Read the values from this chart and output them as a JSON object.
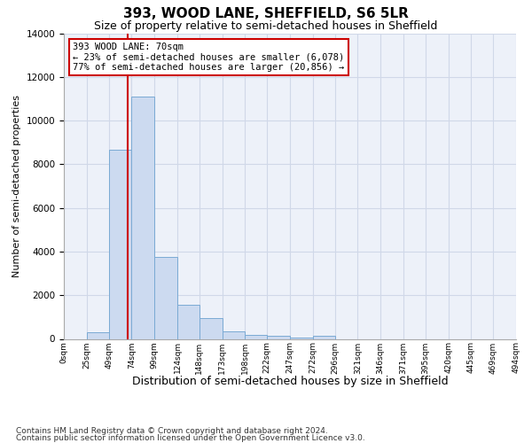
{
  "title": "393, WOOD LANE, SHEFFIELD, S6 5LR",
  "subtitle": "Size of property relative to semi-detached houses in Sheffield",
  "xlabel": "Distribution of semi-detached houses by size in Sheffield",
  "ylabel": "Number of semi-detached properties",
  "footnote1": "Contains HM Land Registry data © Crown copyright and database right 2024.",
  "footnote2": "Contains public sector information licensed under the Open Government Licence v3.0.",
  "annotation_title": "393 WOOD LANE: 70sqm",
  "annotation_line1": "← 23% of semi-detached houses are smaller (6,078)",
  "annotation_line2": "77% of semi-detached houses are larger (20,856) →",
  "property_size": 70,
  "bin_edges": [
    0,
    25,
    49,
    74,
    99,
    124,
    148,
    173,
    198,
    222,
    247,
    272,
    296,
    321,
    346,
    371,
    395,
    420,
    445,
    469,
    494
  ],
  "bar_values": [
    0,
    300,
    8650,
    11100,
    3750,
    1550,
    950,
    350,
    200,
    150,
    80,
    130,
    0,
    0,
    0,
    0,
    0,
    0,
    0,
    0
  ],
  "bar_color": "#ccdaf0",
  "bar_edgecolor": "#7aaad4",
  "vline_color": "#cc0000",
  "ylim": [
    0,
    14000
  ],
  "yticks": [
    0,
    2000,
    4000,
    6000,
    8000,
    10000,
    12000,
    14000
  ],
  "grid_color": "#d0d8e8",
  "bg_color": "#edf1f9",
  "annotation_box_facecolor": "#ffffff",
  "annotation_box_edgecolor": "#cc0000",
  "title_fontsize": 11,
  "subtitle_fontsize": 9,
  "ylabel_fontsize": 8,
  "xlabel_fontsize": 9,
  "annot_fontsize": 7.5,
  "tick_fontsize": 6.5,
  "ytick_fontsize": 7.5,
  "footnote_fontsize": 6.5,
  "tick_labels": [
    "0sqm",
    "25sqm",
    "49sqm",
    "74sqm",
    "99sqm",
    "124sqm",
    "148sqm",
    "173sqm",
    "198sqm",
    "222sqm",
    "247sqm",
    "272sqm",
    "296sqm",
    "321sqm",
    "346sqm",
    "371sqm",
    "395sqm",
    "420sqm",
    "445sqm",
    "469sqm",
    "494sqm"
  ]
}
